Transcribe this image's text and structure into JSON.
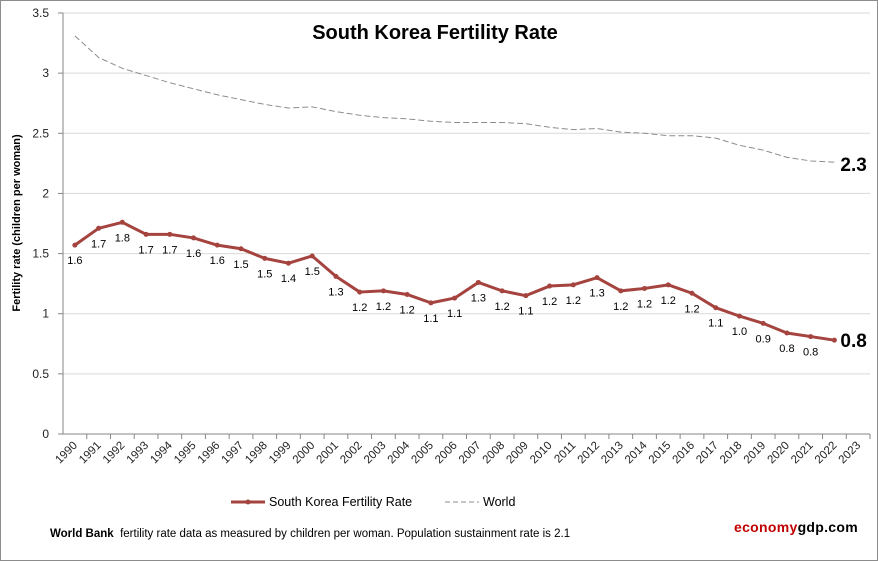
{
  "chart_data": {
    "type": "line",
    "title": "South Korea Fertility Rate",
    "ylabel": "Fertility rate (children per woman)",
    "xlabel": "",
    "ylim": [
      0,
      3.5
    ],
    "yticks": [
      "0",
      "0.5",
      "1",
      "1.5",
      "2",
      "2.5",
      "3",
      "3.5"
    ],
    "grid": true,
    "legend_position": "bottom",
    "categories": [
      "1990",
      "1991",
      "1992",
      "1993",
      "1994",
      "1995",
      "1996",
      "1997",
      "1998",
      "1999",
      "2000",
      "2001",
      "2002",
      "2003",
      "2004",
      "2005",
      "2006",
      "2007",
      "2008",
      "2009",
      "2010",
      "2011",
      "2012",
      "2013",
      "2014",
      "2015",
      "2016",
      "2017",
      "2018",
      "2019",
      "2020",
      "2021",
      "2022",
      "2023"
    ],
    "series": [
      {
        "name": "South Korea Fertility Rate",
        "color": "#a5433f",
        "style": "solid-with-markers",
        "values": [
          1.57,
          1.71,
          1.76,
          1.66,
          1.66,
          1.63,
          1.57,
          1.54,
          1.46,
          1.42,
          1.48,
          1.31,
          1.18,
          1.19,
          1.16,
          1.09,
          1.13,
          1.26,
          1.19,
          1.15,
          1.23,
          1.24,
          1.3,
          1.19,
          1.21,
          1.24,
          1.17,
          1.05,
          0.98,
          0.92,
          0.84,
          0.81,
          0.78,
          null
        ],
        "data_labels": [
          "1.6",
          "1.7",
          "1.8",
          "1.7",
          "1.7",
          "1.6",
          "1.6",
          "1.5",
          "1.5",
          "1.4",
          "1.5",
          "1.3",
          "1.2",
          "1.2",
          "1.2",
          "1.1",
          "1.1",
          "1.3",
          "1.2",
          "1.1",
          "1.2",
          "1.2",
          "1.3",
          "1.2",
          "1.2",
          "1.2",
          "1.2",
          "1.1",
          "1.0",
          "0.9",
          "0.8",
          "0.8"
        ],
        "end_label": "0.8"
      },
      {
        "name": "World",
        "color": "#8c8c8c",
        "style": "dashed",
        "values": [
          3.31,
          3.13,
          3.04,
          2.98,
          2.92,
          2.87,
          2.82,
          2.78,
          2.74,
          2.71,
          2.72,
          2.68,
          2.65,
          2.63,
          2.62,
          2.6,
          2.59,
          2.59,
          2.59,
          2.58,
          2.55,
          2.53,
          2.54,
          2.51,
          2.5,
          2.48,
          2.48,
          2.46,
          2.4,
          2.36,
          2.3,
          2.27,
          2.26,
          null
        ],
        "end_label": "2.3"
      }
    ]
  },
  "footer": {
    "source_bold": "World Bank",
    "note": "fertility rate data as measured by children per woman.  Population sustainment rate is 2.1"
  },
  "brand": {
    "part1": "economy",
    "part2": "gdp.com"
  }
}
